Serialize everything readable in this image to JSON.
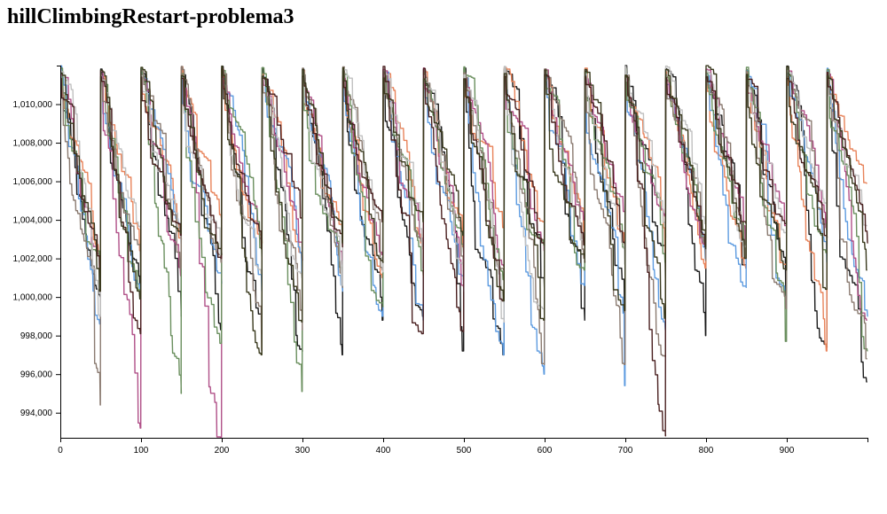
{
  "title": "hillClimbingRestart-problema3",
  "chart_data": {
    "type": "line",
    "title": "hillClimbingRestart-problema3",
    "xlabel": "",
    "ylabel": "",
    "xlim": [
      0,
      1000
    ],
    "ylim": [
      992700,
      1012000
    ],
    "x_ticks": [
      0,
      100,
      200,
      300,
      400,
      500,
      600,
      700,
      800,
      900
    ],
    "x_tick_labels": [
      "0",
      "100",
      "200",
      "300",
      "400",
      "500",
      "600",
      "700",
      "800",
      "900"
    ],
    "y_ticks": [
      994000,
      996000,
      998000,
      1000000,
      1002000,
      1004000,
      1006000,
      1008000,
      1010000
    ],
    "y_tick_labels": [
      "994,000",
      "996,000",
      "998,000",
      "1,000,000",
      "1,002,000",
      "1,004,000",
      "1,006,000",
      "1,008,000",
      "1,010,000"
    ],
    "grid": false,
    "legend": "none",
    "restart_period": 50,
    "series": [
      {
        "color": "#1a1a1a",
        "restart_end_values": [
          1000000,
          1000300,
          999000,
          998300,
          998100,
          997200,
          997000,
          998800,
          999000,
          997200,
          997000,
          1000300,
          998800,
          999000,
          1000500,
          998000,
          1001600,
          999900,
          997400,
          995600
        ]
      },
      {
        "color": "#e8835a",
        "restart_end_values": [
          1002300,
          1002400,
          1003000,
          1004100,
          1002800,
          1002000,
          1003600,
          1001000,
          1002500,
          1002600,
          1003600,
          1003900,
          1003400,
          1002700,
          1002200,
          1001500,
          1001500,
          1001600,
          997200,
          1005900
        ]
      },
      {
        "color": "#5d9be0",
        "restart_end_values": [
          998600,
          1000000,
          1002700,
          1000700,
          1000300,
          1001100,
          1000300,
          999000,
          998800,
          1000300,
          997000,
          996000,
          1000600,
          995400,
          998300,
          1002000,
          1000500,
          1000000,
          1001800,
          999000
        ]
      },
      {
        "color": "#b05088",
        "restart_end_values": [
          1002100,
          993200,
          1001100,
          992600,
          1003000,
          1001900,
          1001700,
          1002200,
          1002900,
          1000500,
          1001600,
          1002400,
          1004000,
          1004400,
          1004200,
          1002600,
          1002800,
          1003700,
          1003600,
          998800
        ]
      },
      {
        "color": "#6a8f5e",
        "restart_end_values": [
          1001200,
          1000100,
          995000,
          997600,
          1001900,
          995100,
          1001000,
          999500,
          1001000,
          1002300,
          1000900,
          1002700,
          1001400,
          1002500,
          1001800,
          1002800,
          1002200,
          997700,
          1002300,
          997200
        ]
      },
      {
        "color": "#8a7a70",
        "restart_end_values": [
          994400,
          1001300,
          1001500,
          1001800,
          997200,
          998300,
          1000500,
          1001400,
          1002600,
          1000900,
          1001400,
          996500,
          1002000,
          996500,
          996900,
          1001900,
          1002000,
          999400,
          1002400,
          996800
        ]
      },
      {
        "color": "#c0c0c0",
        "restart_end_values": [
          999000,
          1003600,
          1003500,
          1002200,
          1001200,
          1001000,
          1000600,
          1001300,
          1001500,
          1001700,
          998700,
          999000,
          1002900,
          1001700,
          1003100,
          1003800,
          1002600,
          1003300,
          1004000,
          1003700
        ]
      },
      {
        "color": "#4a2020",
        "restart_end_values": [
          1000300,
          998100,
          1003200,
          1002000,
          1002500,
          1004100,
          1002600,
          1003900,
          998100,
          998200,
          999800,
          1002700,
          1002700,
          1002800,
          992800,
          1002600,
          1003800,
          1003800,
          1003100,
          1002800
        ]
      },
      {
        "color": "#3a3a1e",
        "restart_end_values": [
          1000300,
          999900,
          1003300,
          1002200,
          997000,
          998700,
          1002800,
          1001800,
          1003900,
          1003200,
          999800,
          998800,
          1001800,
          999300,
          998900,
          1002500,
          1002000,
          1001400,
          1000400,
          1001400
        ]
      }
    ]
  }
}
